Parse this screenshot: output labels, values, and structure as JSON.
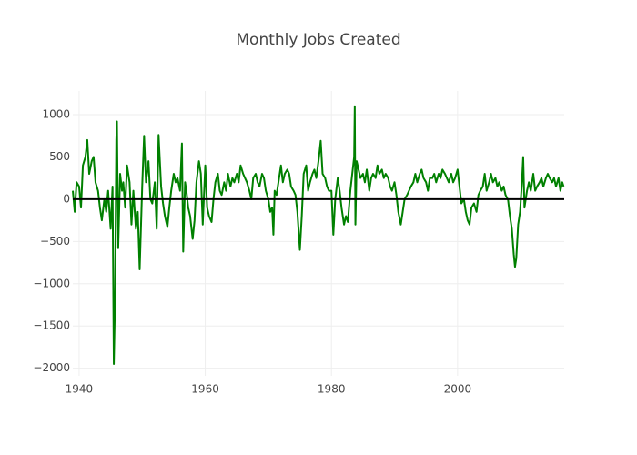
{
  "chart_data": {
    "type": "line",
    "title": "Monthly Jobs Created",
    "x": [
      1939,
      1939.3,
      1939.6,
      1940,
      1940.3,
      1940.6,
      1941,
      1941.3,
      1941.6,
      1942,
      1942.3,
      1942.6,
      1943,
      1943.3,
      1943.6,
      1944,
      1944.3,
      1944.6,
      1945,
      1945.3,
      1945.5,
      1945.7,
      1945.9,
      1946,
      1946.2,
      1946.5,
      1946.8,
      1947,
      1947.3,
      1947.6,
      1948,
      1948.3,
      1948.6,
      1949,
      1949.3,
      1949.6,
      1950,
      1950.3,
      1950.6,
      1951,
      1951.3,
      1951.6,
      1952,
      1952.3,
      1952.6,
      1953,
      1953.3,
      1953.6,
      1954,
      1954.3,
      1954.6,
      1955,
      1955.3,
      1955.6,
      1956,
      1956.3,
      1956.5,
      1956.8,
      1957,
      1957.3,
      1957.6,
      1958,
      1958.3,
      1958.6,
      1959,
      1959.3,
      1959.6,
      1960,
      1960.3,
      1960.6,
      1961,
      1961.3,
      1961.6,
      1962,
      1962.3,
      1962.6,
      1963,
      1963.3,
      1963.6,
      1964,
      1964.3,
      1964.6,
      1965,
      1965.3,
      1965.6,
      1966,
      1966.3,
      1966.6,
      1967,
      1967.3,
      1967.6,
      1968,
      1968.3,
      1968.6,
      1969,
      1969.3,
      1969.6,
      1970,
      1970.3,
      1970.6,
      1970.8,
      1971,
      1971.3,
      1971.6,
      1972,
      1972.3,
      1972.6,
      1973,
      1973.3,
      1973.6,
      1974,
      1974.3,
      1974.6,
      1975,
      1975.3,
      1975.6,
      1976,
      1976.3,
      1976.6,
      1977,
      1977.3,
      1977.6,
      1978,
      1978.3,
      1978.6,
      1979,
      1979.3,
      1979.6,
      1980,
      1980.3,
      1980.6,
      1981,
      1981.3,
      1981.6,
      1982,
      1982.3,
      1982.6,
      1983,
      1983.3,
      1983.6,
      1983.7,
      1983.8,
      1984,
      1984.3,
      1984.6,
      1985,
      1985.3,
      1985.6,
      1986,
      1986.3,
      1986.6,
      1987,
      1987.3,
      1987.6,
      1988,
      1988.3,
      1988.6,
      1989,
      1989.3,
      1989.6,
      1990,
      1990.3,
      1990.6,
      1991,
      1991.3,
      1991.6,
      1992,
      1992.3,
      1992.6,
      1993,
      1993.3,
      1993.6,
      1994,
      1994.3,
      1994.6,
      1995,
      1995.3,
      1995.6,
      1996,
      1996.3,
      1996.6,
      1997,
      1997.3,
      1997.6,
      1998,
      1998.3,
      1998.6,
      1999,
      1999.3,
      1999.6,
      2000,
      2000.3,
      2000.6,
      2001,
      2001.3,
      2001.6,
      2001.9,
      2002.2,
      2002.6,
      2003,
      2003.3,
      2003.6,
      2004,
      2004.3,
      2004.6,
      2005,
      2005.3,
      2005.6,
      2006,
      2006.3,
      2006.6,
      2007,
      2007.3,
      2007.6,
      2008,
      2008.3,
      2008.6,
      2008.9,
      2009.1,
      2009.3,
      2009.6,
      2009.9,
      2010.2,
      2010.4,
      2010.6,
      2011,
      2011.3,
      2011.6,
      2012,
      2012.3,
      2012.6,
      2013,
      2013.3,
      2013.6,
      2014,
      2014.3,
      2014.6,
      2015,
      2015.3,
      2015.6,
      2016,
      2016.3,
      2016.6,
      2016.8
    ],
    "series": [
      {
        "color": "#008000",
        "values": [
          100,
          -150,
          200,
          150,
          -100,
          400,
          500,
          700,
          300,
          450,
          500,
          200,
          100,
          -100,
          -250,
          0,
          -150,
          100,
          -350,
          150,
          -1950,
          -1200,
          700,
          920,
          -580,
          300,
          100,
          200,
          -100,
          400,
          200,
          -300,
          100,
          -350,
          -150,
          -830,
          150,
          750,
          200,
          450,
          0,
          -50,
          200,
          -350,
          760,
          150,
          -50,
          -200,
          -330,
          -100,
          100,
          300,
          200,
          250,
          100,
          660,
          -620,
          200,
          100,
          -100,
          -200,
          -470,
          -250,
          200,
          450,
          300,
          -300,
          400,
          -100,
          -200,
          -270,
          0,
          200,
          300,
          100,
          50,
          200,
          100,
          300,
          150,
          250,
          200,
          300,
          200,
          400,
          300,
          250,
          200,
          100,
          0,
          250,
          300,
          200,
          150,
          300,
          250,
          100,
          0,
          -150,
          -100,
          -420,
          100,
          50,
          200,
          400,
          200,
          300,
          350,
          300,
          150,
          100,
          50,
          -150,
          -600,
          -200,
          300,
          400,
          100,
          200,
          300,
          350,
          250,
          480,
          690,
          300,
          250,
          150,
          100,
          100,
          -420,
          0,
          250,
          100,
          -100,
          -300,
          -200,
          -270,
          100,
          300,
          500,
          1100,
          -300,
          450,
          350,
          250,
          300,
          200,
          350,
          100,
          250,
          300,
          250,
          400,
          300,
          350,
          250,
          300,
          250,
          150,
          100,
          200,
          50,
          -150,
          -300,
          -150,
          0,
          50,
          100,
          150,
          200,
          300,
          200,
          300,
          350,
          250,
          200,
          100,
          250,
          250,
          300,
          200,
          300,
          250,
          350,
          300,
          250,
          200,
          300,
          200,
          250,
          350,
          150,
          -50,
          0,
          -150,
          -250,
          -300,
          -100,
          -50,
          -150,
          50,
          100,
          150,
          300,
          100,
          200,
          300,
          200,
          250,
          150,
          200,
          100,
          150,
          50,
          -10,
          -200,
          -350,
          -650,
          -800,
          -700,
          -300,
          -150,
          200,
          500,
          -100,
          100,
          200,
          100,
          300,
          100,
          150,
          200,
          250,
          150,
          250,
          300,
          250,
          200,
          250,
          150,
          250,
          100,
          200,
          150
        ]
      }
    ],
    "xlim": [
      1939,
      2016.9
    ],
    "xticks": [
      1940,
      1960,
      1980,
      2000
    ],
    "ylim": [
      -2090,
      1280
    ],
    "yticks": [
      {
        "value": -2000,
        "label": "−2000"
      },
      {
        "value": -1500,
        "label": "−1500"
      },
      {
        "value": -1000,
        "label": "−1000"
      },
      {
        "value": -500,
        "label": "−500"
      },
      0,
      500,
      1000
    ],
    "grid": true
  }
}
